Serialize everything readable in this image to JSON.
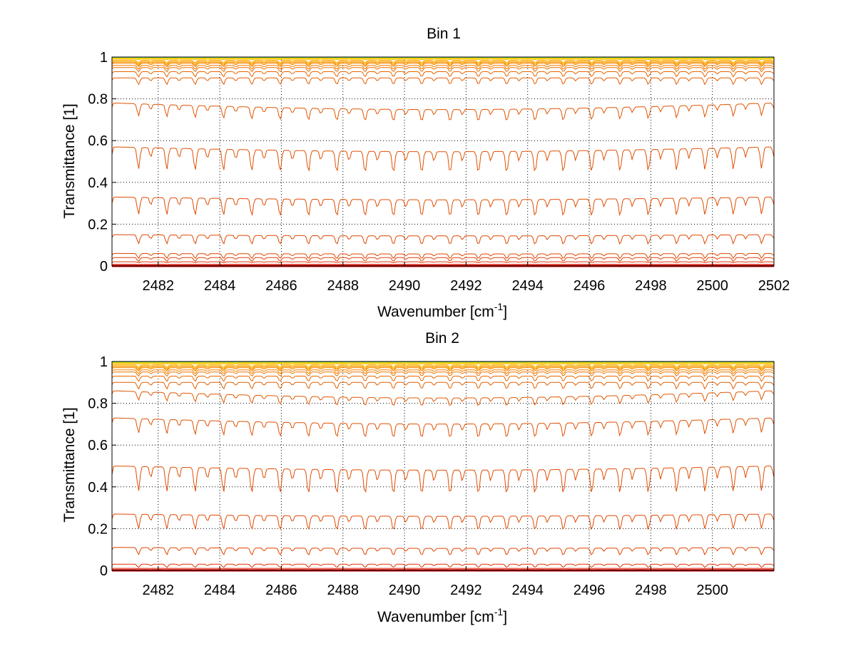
{
  "chart_data": [
    {
      "type": "line",
      "title": "Bin 1",
      "xlabel": "Wavenumber [cm",
      "xlabel_sup": "-1",
      "xlabel_end": "]",
      "ylabel": "Transmittance [1]",
      "xlim": [
        2480.5,
        2502
      ],
      "ylim": [
        0,
        1
      ],
      "grid": true,
      "xticks": [
        2482,
        2484,
        2486,
        2488,
        2490,
        2492,
        2494,
        2496,
        2498,
        2500,
        2502
      ],
      "xtick_labels": [
        "2482",
        "2484",
        "2486",
        "2488",
        "2490",
        "2492",
        "2494",
        "2496",
        "2498",
        "2500",
        "2502"
      ],
      "yticks": [
        0,
        0.2,
        0.4,
        0.6,
        0.8,
        1
      ],
      "ytick_labels": [
        "0",
        "0.2",
        "0.4",
        "0.6",
        "0.8",
        "1"
      ],
      "series_baselines": [
        0.0,
        0.003,
        0.008,
        0.02,
        0.04,
        0.06,
        0.15,
        0.33,
        0.57,
        0.78,
        0.9,
        0.93,
        0.95,
        0.96,
        0.97,
        0.975,
        0.98,
        0.985,
        0.99,
        0.993,
        0.996,
        0.998,
        1.0
      ],
      "series_colors": [
        "#cc0000",
        "#d40000",
        "#dc1a00",
        "#e03000",
        "#e04000",
        "#e04400",
        "#e04800",
        "#e04c00",
        "#e05000",
        "#e05400",
        "#e45c00",
        "#e86400",
        "#ec7000",
        "#f07c00",
        "#f48800",
        "#f89400",
        "#fca000",
        "#ffae00",
        "#ffbc00",
        "#ffcc00",
        "#ffdc00",
        "#66cc66",
        "#0088cc"
      ]
    },
    {
      "type": "line",
      "title": "Bin 2",
      "xlabel": "Wavenumber [cm",
      "xlabel_sup": "-1",
      "xlabel_end": "]",
      "ylabel": "Transmittance [1]",
      "xlim": [
        2480.5,
        2502
      ],
      "ylim": [
        0,
        1
      ],
      "grid": true,
      "xticks": [
        2482,
        2484,
        2486,
        2488,
        2490,
        2492,
        2494,
        2496,
        2498,
        2500
      ],
      "xtick_labels": [
        "2482",
        "2484",
        "2486",
        "2488",
        "2490",
        "2492",
        "2494",
        "2496",
        "2498",
        "2500"
      ],
      "yticks": [
        0,
        0.2,
        0.4,
        0.6,
        0.8,
        1
      ],
      "ytick_labels": [
        "0",
        "0.2",
        "0.4",
        "0.6",
        "0.8",
        "1"
      ],
      "series_baselines": [
        0.0,
        0.004,
        0.01,
        0.03,
        0.11,
        0.27,
        0.5,
        0.73,
        0.86,
        0.9,
        0.93,
        0.95,
        0.96,
        0.97,
        0.975,
        0.98,
        0.985,
        0.99,
        0.993,
        0.996,
        0.998,
        1.0
      ],
      "series_colors": [
        "#cc0000",
        "#d40000",
        "#dc1a00",
        "#e03000",
        "#e04400",
        "#e04800",
        "#e04c00",
        "#e05000",
        "#e05800",
        "#e46000",
        "#e86800",
        "#ec7400",
        "#f08000",
        "#f48c00",
        "#f89800",
        "#fca400",
        "#ffb200",
        "#ffc000",
        "#ffd000",
        "#ffe000",
        "#66cc66",
        "#0088cc"
      ]
    }
  ]
}
